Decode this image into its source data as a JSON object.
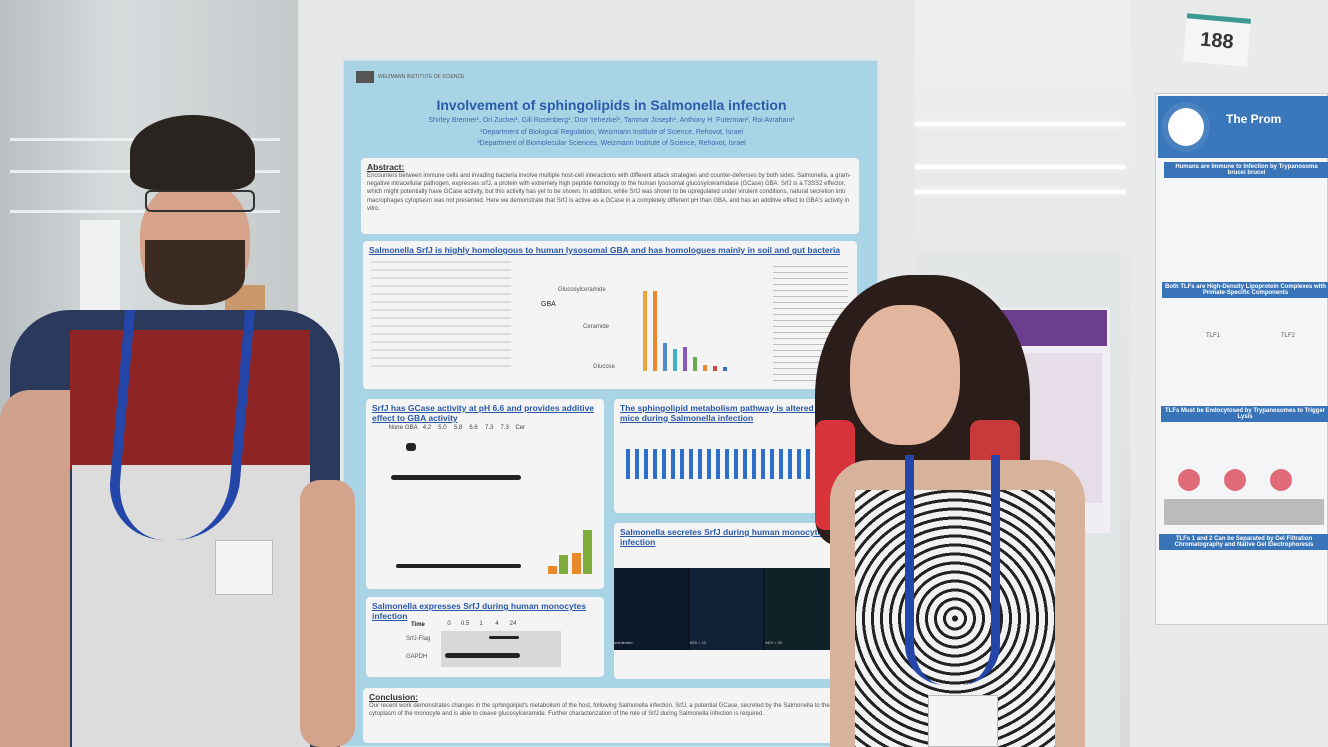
{
  "booth_number": "188",
  "main_poster": {
    "institute": "WEIZMANN INSTITUTE OF SCIENCE",
    "title": "Involvement of sphingolipids in Salmonella infection",
    "authors": "Shirley Brenner¹, Ori Zucker¹, Gili Rosenberg¹, Dror Yehezkel¹, Tammar Joseph¹, Anthony H. Futerman², Roi Avraham¹",
    "affiliation_1": "¹Department of Biological Regulation, Weizmann Institute of Science, Rehovot, Israel",
    "affiliation_2": "²Department of Biomolecular Sciences, Weizmann Institute of Science, Rehovot, Israel",
    "abstract_heading": "Abstract:",
    "abstract_text": "Encounters between immune cells and invading bacteria involve multiple host-cell interactions with different attack strategies and counter-defenses by both sides. Salmonella, a gram-negative intracellular pathogen, expresses srfJ, a protein with extremely high peptide homology to the human lysosomal glucosylceramidase (GCase) GBA. SrfJ is a T3SS2 effector, which might potentially have GCase activity, but this activity has yet to be shown. In addition, while SrfJ was shown to be upregulated under virulent conditions, natural secretion into macrophages cytoplasm was not presented. Here we demonstrate that SrfJ is active as a GCase in a completely different pH than GBA, and has an additive effect to GBA's activity in vitro.",
    "section_1": {
      "title": "Salmonella SrfJ is highly homologous to human lysosomal GBA and has homologues mainly in soil and gut bacteria",
      "labels": [
        "GBA",
        "Glucosylceramide",
        "Ceramide",
        "Glucose"
      ]
    },
    "section_2": {
      "title": "SrfJ has GCase activity at pH 6.6 and provides additive effect to GBA activity",
      "lanes": [
        "None",
        "GBA",
        "4.2",
        "5.0",
        "5.8",
        "6.6",
        "7.3",
        "7.3",
        "Cer"
      ]
    },
    "section_3": {
      "title": "The sphingolipid metabolism pathway is altered in mice during Salmonella infection"
    },
    "section_4": {
      "title": "Salmonella secretes SrfJ during human monocytes infection",
      "panels": [
        "uninfected",
        "MOI = 10",
        "MOI = 25"
      ]
    },
    "section_5": {
      "title": "Salmonella expresses SrfJ during human monocytes infection",
      "time_label": "Time",
      "times": [
        "0",
        "0.5",
        "1",
        "4",
        "24"
      ],
      "rows": [
        "SrfJ-Flag",
        "GAPDH"
      ]
    },
    "conclusion_heading": "Conclusion:",
    "conclusion_text": "Our recent work demonstrates changes in the sphingolipid's metabolism of the host, following Salmonella infection. SrfJ, a potential GCase, secreted by the Salmonella to the cytoplasm of the monocyte and is able to cleave glucosylceramide. Further characterization of the role of SrfJ during Salmonella infection is required."
  },
  "right_poster": {
    "title": "The Prom",
    "headers": [
      "Humans are Immune to Infection by Trypanosoma brucei brucei",
      "Both TLFs are High-Density Lipoprotein Complexes with Primate-Specific Components",
      "TLFs Must be Endocytosed by Trypanosomes to Trigger Lysis",
      "TLFs 1 and 2 Can be Separated by Gel Filtration Chromatography and Native Gel Electrophoresis"
    ],
    "labels": [
      "TLF1",
      "TLF2"
    ]
  },
  "colors": {
    "poster_blue": "#a9d4e6",
    "title_blue": "#2a58a8",
    "orange_bar": "#e8892e",
    "green_bar": "#7fac3b",
    "lanyard": "#2346a8"
  }
}
